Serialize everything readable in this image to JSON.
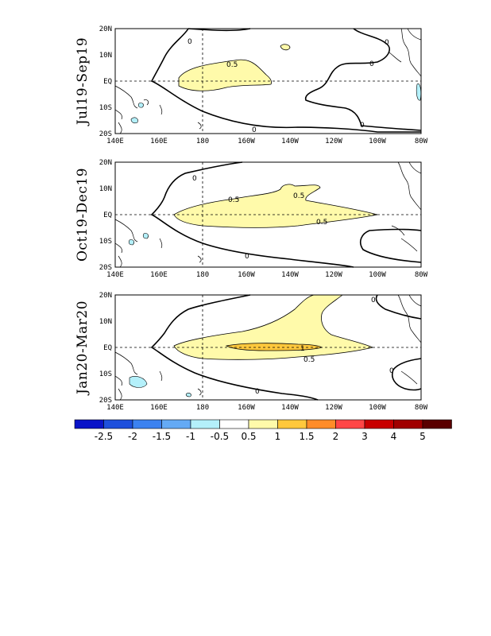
{
  "panels": [
    {
      "period": "Jul19-Sep19",
      "contour_labels": {
        "zero_a": "0",
        "zero_b": "0",
        "zero_c": "0",
        "zero_d": "0",
        "zero_e": "0",
        "pos_a": "0.5"
      }
    },
    {
      "period": "Oct19-Dec19",
      "contour_labels": {
        "zero_a": "0",
        "zero_b": "0",
        "pos_a": "0.5",
        "pos_b": "0.5",
        "pos_c": "0.5"
      }
    },
    {
      "period": "Jan20-Mar20",
      "contour_labels": {
        "zero_a": "0",
        "zero_b": "0",
        "zero_c": "0",
        "pos_a": "1",
        "pos_b": "0.5"
      }
    }
  ],
  "axes": {
    "lat_labels": [
      "20N",
      "10N",
      "EQ",
      "10S",
      "20S"
    ],
    "lon_labels": [
      "140E",
      "160E",
      "180",
      "160W",
      "140W",
      "120W",
      "100W",
      "80W"
    ]
  },
  "colorbar": {
    "labels": [
      "-2.5",
      "-2",
      "-1.5",
      "-1",
      "-0.5",
      "0.5",
      "1",
      "1.5",
      "2",
      "3",
      "4",
      "5"
    ],
    "colors": [
      "#0a14c8",
      "#1e50dc",
      "#3c82f0",
      "#64aaf5",
      "#b4f0fa",
      "#ffffff",
      "#fffaaa",
      "#ffc83c",
      "#ff8c28",
      "#ff4646",
      "#c80000",
      "#a00000",
      "#5a0000"
    ]
  },
  "fill_colors": {
    "pos_0_5": "#fffaaa",
    "pos_1": "#ffc83c",
    "neg_0_5": "#b4f0fa"
  }
}
